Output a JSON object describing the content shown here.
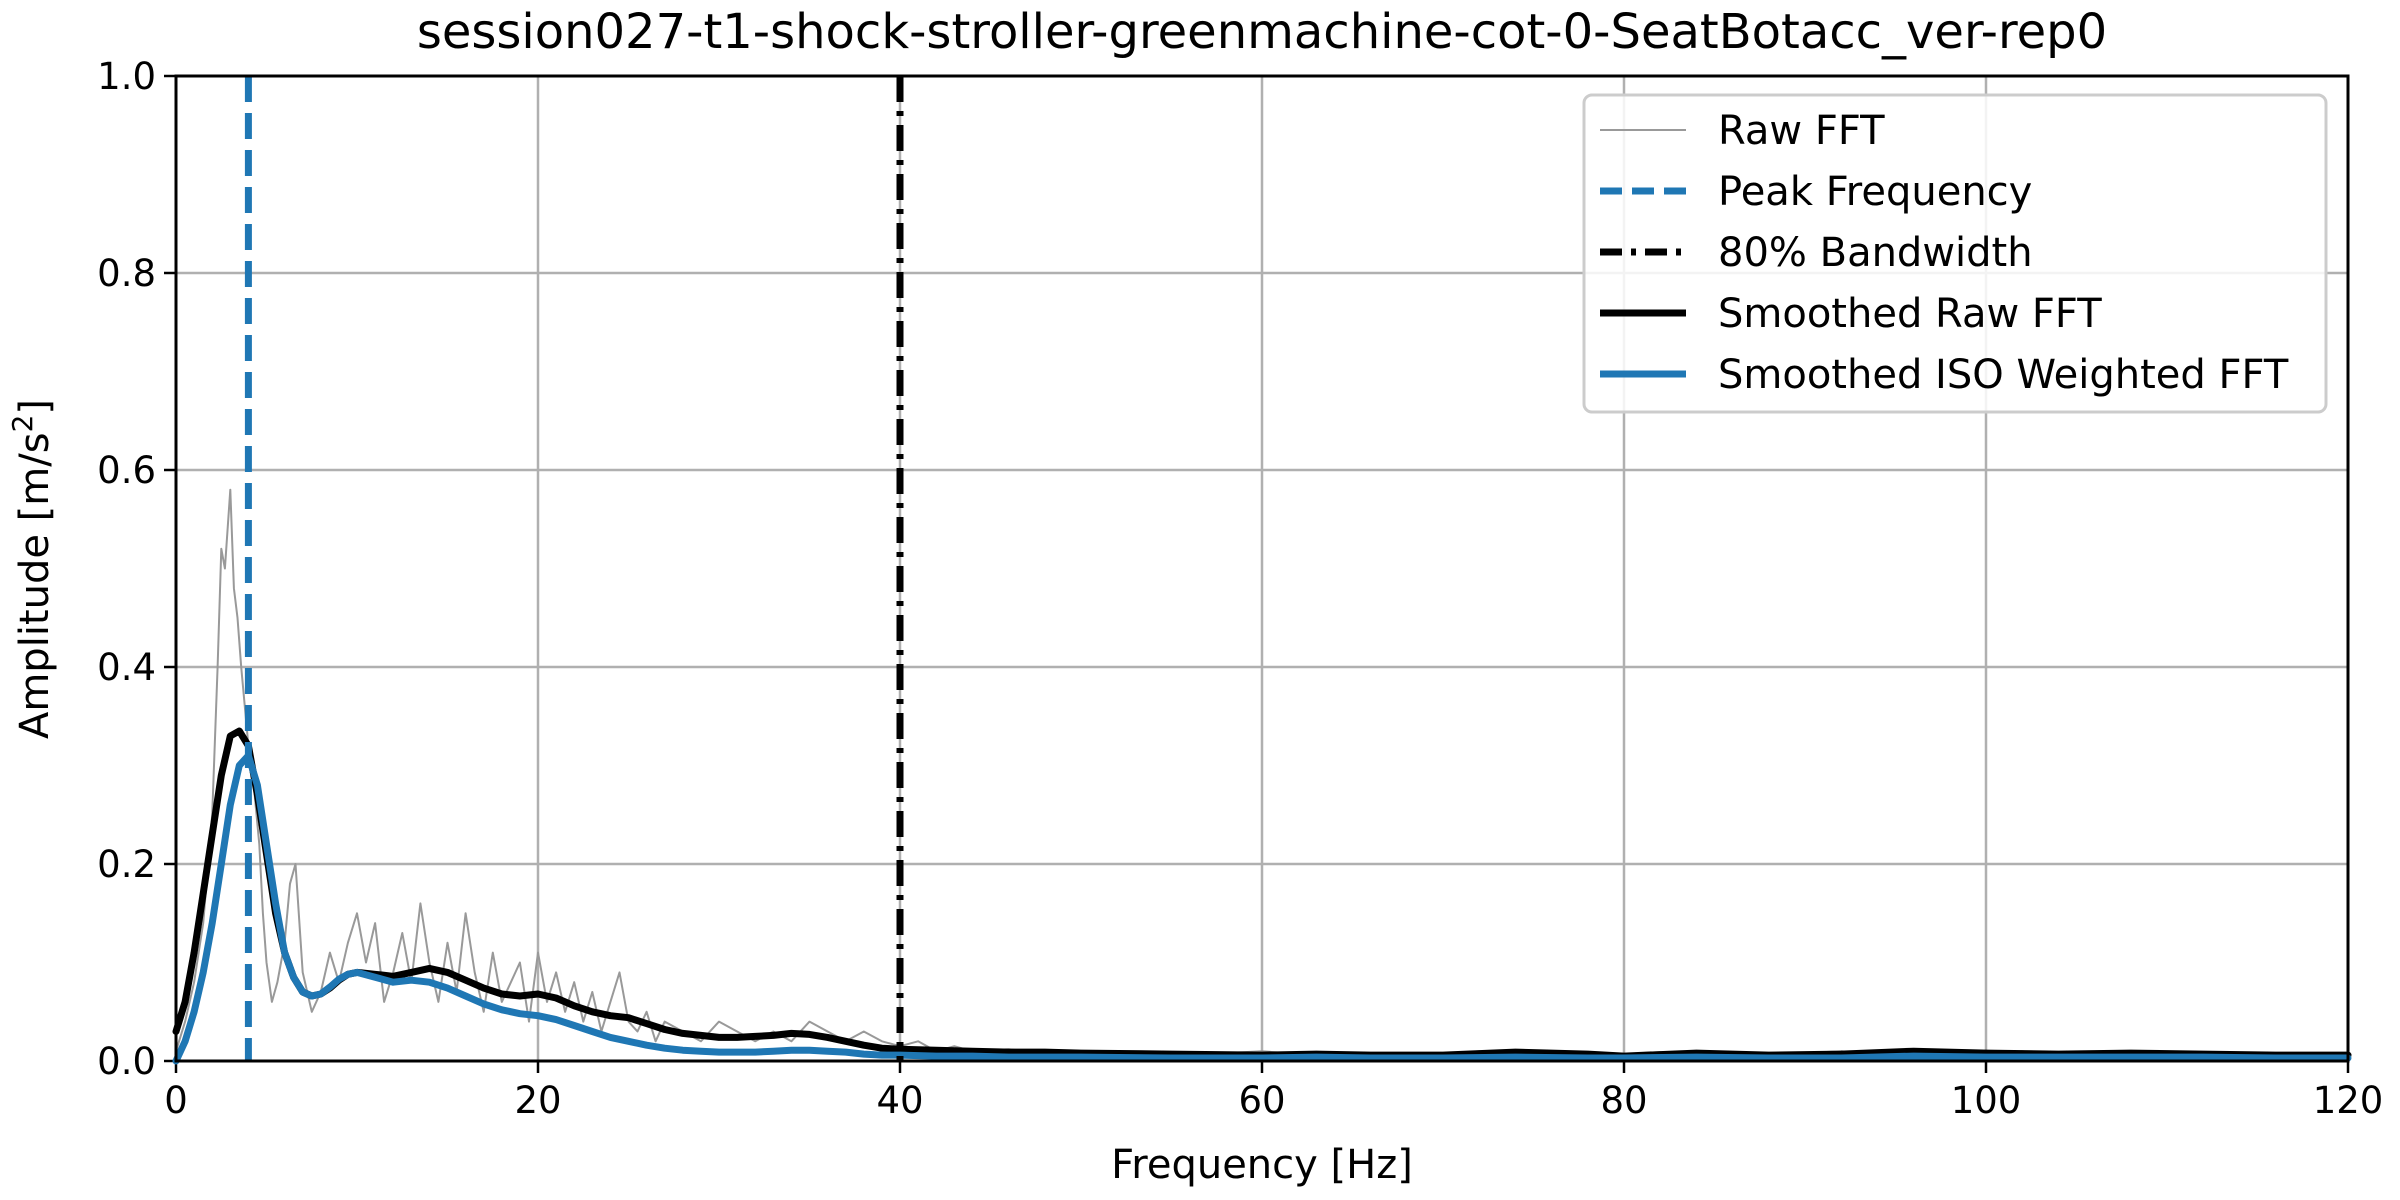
{
  "chart_data": {
    "type": "line",
    "title": "session027-t1-shock-stroller-greenmachine-cot-0-SeatBotacc_ver-rep0",
    "xlabel": "Frequency [Hz]",
    "ylabel_main": "Amplitude [m/s",
    "ylabel_sup": "2",
    "ylabel_end": "]",
    "xlim": [
      0,
      120
    ],
    "ylim": [
      0,
      1.0
    ],
    "x_ticks": [
      0,
      20,
      40,
      60,
      80,
      100,
      120
    ],
    "x_tick_labels": [
      "0",
      "20",
      "40",
      "60",
      "80",
      "100",
      "120"
    ],
    "y_ticks": [
      0.0,
      0.2,
      0.4,
      0.6,
      0.8,
      1.0
    ],
    "y_tick_labels": [
      "0.0",
      "0.2",
      "0.4",
      "0.6",
      "0.8",
      "1.0"
    ],
    "grid": true,
    "legend_position": "top-right",
    "colors": {
      "raw": "#999999",
      "peak": "#1f77b4",
      "bandwidth": "#000000",
      "smoothed_raw": "#000000",
      "smoothed_iso": "#1f77b4",
      "grid": "#b0b0b0"
    },
    "peak_frequency": 4.0,
    "bandwidth_80": 40.0,
    "series": [
      {
        "name": "Raw FFT",
        "x": [
          0,
          0.5,
          1,
          1.5,
          2,
          2.3,
          2.5,
          2.7,
          3,
          3.2,
          3.4,
          3.6,
          3.8,
          4,
          4.2,
          4.4,
          4.6,
          4.8,
          5,
          5.3,
          5.6,
          6,
          6.3,
          6.6,
          7,
          7.5,
          8,
          8.5,
          9,
          9.5,
          10,
          10.5,
          11,
          11.5,
          12,
          12.5,
          13,
          13.5,
          14,
          14.5,
          15,
          15.5,
          16,
          16.5,
          17,
          17.5,
          18,
          18.5,
          19,
          19.5,
          20,
          20.5,
          21,
          21.5,
          22,
          22.5,
          23,
          23.5,
          24,
          24.5,
          25,
          25.5,
          26,
          26.5,
          27,
          28,
          29,
          30,
          31,
          32,
          33,
          34,
          35,
          36,
          37,
          38,
          39,
          40,
          41,
          42,
          43,
          44,
          46,
          48,
          50,
          52,
          54,
          56,
          58,
          60,
          62,
          64,
          66,
          68,
          70,
          72,
          74,
          76,
          78,
          80,
          82,
          84,
          86,
          88,
          90,
          92,
          94,
          96,
          98,
          100,
          102,
          104,
          106,
          108,
          110,
          112,
          114,
          116,
          118,
          120
        ],
        "values": [
          0.01,
          0.04,
          0.08,
          0.14,
          0.25,
          0.4,
          0.52,
          0.5,
          0.58,
          0.48,
          0.45,
          0.4,
          0.36,
          0.32,
          0.3,
          0.26,
          0.22,
          0.15,
          0.1,
          0.06,
          0.08,
          0.12,
          0.18,
          0.2,
          0.09,
          0.05,
          0.07,
          0.11,
          0.08,
          0.12,
          0.15,
          0.1,
          0.14,
          0.06,
          0.09,
          0.13,
          0.08,
          0.16,
          0.1,
          0.06,
          0.12,
          0.07,
          0.15,
          0.09,
          0.05,
          0.11,
          0.06,
          0.08,
          0.1,
          0.04,
          0.11,
          0.06,
          0.09,
          0.05,
          0.08,
          0.04,
          0.07,
          0.03,
          0.06,
          0.09,
          0.04,
          0.03,
          0.05,
          0.02,
          0.04,
          0.03,
          0.02,
          0.04,
          0.03,
          0.02,
          0.03,
          0.02,
          0.04,
          0.03,
          0.02,
          0.03,
          0.02,
          0.015,
          0.02,
          0.01,
          0.015,
          0.01,
          0.012,
          0.008,
          0.01,
          0.007,
          0.009,
          0.006,
          0.008,
          0.01,
          0.007,
          0.009,
          0.006,
          0.008,
          0.007,
          0.01,
          0.006,
          0.008,
          0.005,
          0.007,
          0.009,
          0.006,
          0.007,
          0.005,
          0.008,
          0.01,
          0.006,
          0.012,
          0.008,
          0.007,
          0.01,
          0.006,
          0.008,
          0.007,
          0.009,
          0.006,
          0.007,
          0.008,
          0.006,
          0.007
        ]
      },
      {
        "name": "Smoothed Raw FFT",
        "x": [
          0,
          0.5,
          1,
          1.5,
          2,
          2.5,
          3,
          3.5,
          4,
          4.5,
          5,
          5.5,
          6,
          6.5,
          7,
          7.5,
          8,
          8.5,
          9,
          9.5,
          10,
          11,
          12,
          13,
          14,
          15,
          16,
          17,
          18,
          19,
          20,
          21,
          22,
          23,
          24,
          25,
          26,
          27,
          28,
          29,
          30,
          31,
          32,
          33,
          34,
          35,
          36,
          37,
          38,
          39,
          40,
          42,
          44,
          46,
          48,
          50,
          55,
          60,
          63,
          66,
          70,
          74,
          78,
          80,
          84,
          88,
          92,
          96,
          100,
          104,
          108,
          112,
          116,
          120
        ],
        "values": [
          0.03,
          0.06,
          0.11,
          0.17,
          0.23,
          0.29,
          0.33,
          0.335,
          0.32,
          0.27,
          0.21,
          0.15,
          0.11,
          0.085,
          0.07,
          0.066,
          0.068,
          0.074,
          0.082,
          0.088,
          0.09,
          0.088,
          0.086,
          0.09,
          0.094,
          0.09,
          0.082,
          0.074,
          0.068,
          0.066,
          0.068,
          0.064,
          0.056,
          0.05,
          0.046,
          0.044,
          0.038,
          0.032,
          0.028,
          0.026,
          0.024,
          0.024,
          0.025,
          0.026,
          0.028,
          0.027,
          0.024,
          0.02,
          0.016,
          0.013,
          0.012,
          0.011,
          0.01,
          0.009,
          0.009,
          0.008,
          0.007,
          0.006,
          0.007,
          0.006,
          0.006,
          0.009,
          0.007,
          0.005,
          0.008,
          0.006,
          0.007,
          0.01,
          0.008,
          0.007,
          0.008,
          0.007,
          0.006,
          0.006
        ]
      },
      {
        "name": "Smoothed ISO Weighted FFT",
        "x": [
          0,
          0.5,
          1,
          1.5,
          2,
          2.5,
          3,
          3.5,
          4,
          4.5,
          5,
          5.5,
          6,
          6.5,
          7,
          7.5,
          8,
          8.5,
          9,
          9.5,
          10,
          11,
          12,
          13,
          14,
          15,
          16,
          17,
          18,
          19,
          20,
          21,
          22,
          23,
          24,
          25,
          26,
          27,
          28,
          29,
          30,
          31,
          32,
          33,
          34,
          35,
          36,
          37,
          38,
          39,
          40,
          42,
          44,
          46,
          48,
          50,
          55,
          60,
          63,
          66,
          70,
          74,
          78,
          80,
          84,
          88,
          92,
          96,
          100,
          104,
          108,
          112,
          116,
          120
        ],
        "values": [
          0.0,
          0.02,
          0.05,
          0.09,
          0.14,
          0.2,
          0.26,
          0.3,
          0.31,
          0.28,
          0.22,
          0.16,
          0.11,
          0.085,
          0.07,
          0.066,
          0.068,
          0.075,
          0.083,
          0.088,
          0.09,
          0.085,
          0.08,
          0.082,
          0.08,
          0.074,
          0.066,
          0.058,
          0.052,
          0.048,
          0.046,
          0.042,
          0.036,
          0.03,
          0.024,
          0.02,
          0.016,
          0.013,
          0.011,
          0.01,
          0.009,
          0.009,
          0.009,
          0.01,
          0.011,
          0.011,
          0.01,
          0.009,
          0.007,
          0.006,
          0.006,
          0.005,
          0.005,
          0.004,
          0.004,
          0.004,
          0.003,
          0.003,
          0.004,
          0.003,
          0.003,
          0.004,
          0.003,
          0.003,
          0.004,
          0.003,
          0.003,
          0.005,
          0.004,
          0.004,
          0.004,
          0.004,
          0.003,
          0.003
        ]
      }
    ],
    "legend": [
      {
        "label": "Raw FFT",
        "key": "raw"
      },
      {
        "label": "Peak Frequency",
        "key": "peak"
      },
      {
        "label": "80% Bandwidth",
        "key": "bandwidth"
      },
      {
        "label": "Smoothed Raw FFT",
        "key": "smoothed_raw"
      },
      {
        "label": "Smoothed ISO Weighted FFT",
        "key": "smoothed_iso"
      }
    ]
  }
}
